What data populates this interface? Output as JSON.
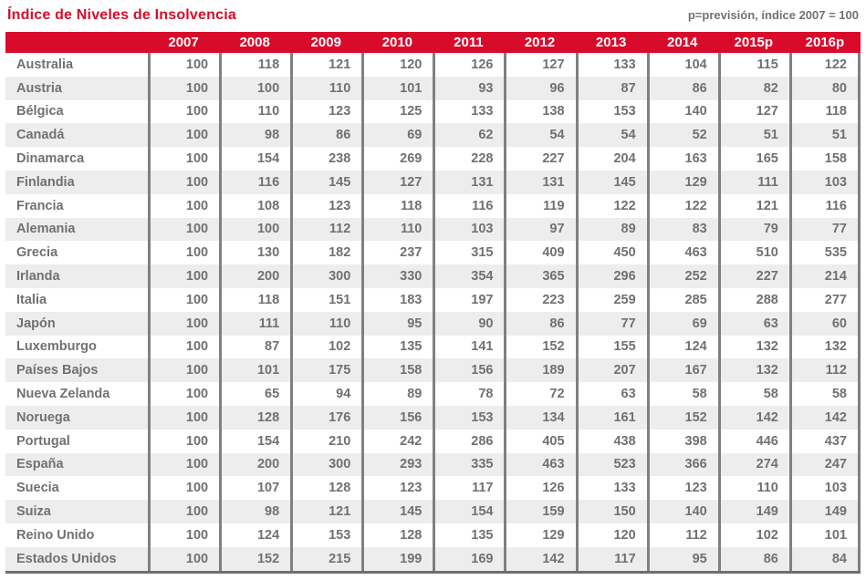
{
  "title": "Índice de Niveles de Insolvencia",
  "note": "p=previsión, índice 2007 = 100",
  "colors": {
    "accent": "#d90b2b",
    "header_text": "#ffffff",
    "body_text": "#6f7174",
    "row_alt": "#ededee",
    "grid": "#7e8083",
    "bottom_border": "#6d6e71"
  },
  "chart_data": {
    "type": "table",
    "title": "Índice de Niveles de Insolvencia",
    "note": "p=previsión, índice 2007 = 100",
    "columns": [
      "2007",
      "2008",
      "2009",
      "2010",
      "2011",
      "2012",
      "2013",
      "2014",
      "2015p",
      "2016p"
    ],
    "rows": [
      {
        "country": "Australia",
        "values": [
          100,
          118,
          121,
          120,
          126,
          127,
          133,
          104,
          115,
          122
        ]
      },
      {
        "country": "Austria",
        "values": [
          100,
          100,
          110,
          101,
          93,
          96,
          87,
          86,
          82,
          80
        ]
      },
      {
        "country": "Bélgica",
        "values": [
          100,
          110,
          123,
          125,
          133,
          138,
          153,
          140,
          127,
          118
        ]
      },
      {
        "country": "Canadá",
        "values": [
          100,
          98,
          86,
          69,
          62,
          54,
          54,
          52,
          51,
          51
        ]
      },
      {
        "country": "Dinamarca",
        "values": [
          100,
          154,
          238,
          269,
          228,
          227,
          204,
          163,
          165,
          158
        ]
      },
      {
        "country": "Finlandia",
        "values": [
          100,
          116,
          145,
          127,
          131,
          131,
          145,
          129,
          111,
          103
        ]
      },
      {
        "country": "Francia",
        "values": [
          100,
          108,
          123,
          118,
          116,
          119,
          122,
          122,
          121,
          116
        ]
      },
      {
        "country": "Alemania",
        "values": [
          100,
          100,
          112,
          110,
          103,
          97,
          89,
          83,
          79,
          77
        ]
      },
      {
        "country": "Grecia",
        "values": [
          100,
          130,
          182,
          237,
          315,
          409,
          450,
          463,
          510,
          535
        ]
      },
      {
        "country": "Irlanda",
        "values": [
          100,
          200,
          300,
          330,
          354,
          365,
          296,
          252,
          227,
          214
        ]
      },
      {
        "country": "Italia",
        "values": [
          100,
          118,
          151,
          183,
          197,
          223,
          259,
          285,
          288,
          277
        ]
      },
      {
        "country": "Japón",
        "values": [
          100,
          111,
          110,
          95,
          90,
          86,
          77,
          69,
          63,
          60
        ]
      },
      {
        "country": "Luxemburgo",
        "values": [
          100,
          87,
          102,
          135,
          141,
          152,
          155,
          124,
          132,
          132
        ]
      },
      {
        "country": "Países Bajos",
        "values": [
          100,
          101,
          175,
          158,
          156,
          189,
          207,
          167,
          132,
          112
        ]
      },
      {
        "country": "Nueva Zelanda",
        "values": [
          100,
          65,
          94,
          89,
          78,
          72,
          63,
          58,
          58,
          58
        ]
      },
      {
        "country": "Noruega",
        "values": [
          100,
          128,
          176,
          156,
          153,
          134,
          161,
          152,
          142,
          142
        ]
      },
      {
        "country": "Portugal",
        "values": [
          100,
          154,
          210,
          242,
          286,
          405,
          438,
          398,
          446,
          437
        ]
      },
      {
        "country": "España",
        "values": [
          100,
          200,
          300,
          293,
          335,
          463,
          523,
          366,
          274,
          247
        ]
      },
      {
        "country": "Suecia",
        "values": [
          100,
          107,
          128,
          123,
          117,
          126,
          133,
          123,
          110,
          103
        ]
      },
      {
        "country": "Suiza",
        "values": [
          100,
          98,
          121,
          145,
          154,
          159,
          150,
          140,
          149,
          149
        ]
      },
      {
        "country": "Reino Unido",
        "values": [
          100,
          124,
          153,
          128,
          135,
          129,
          120,
          112,
          102,
          101
        ]
      },
      {
        "country": "Estados Unidos",
        "values": [
          100,
          152,
          215,
          199,
          169,
          142,
          117,
          95,
          86,
          84
        ]
      }
    ]
  }
}
